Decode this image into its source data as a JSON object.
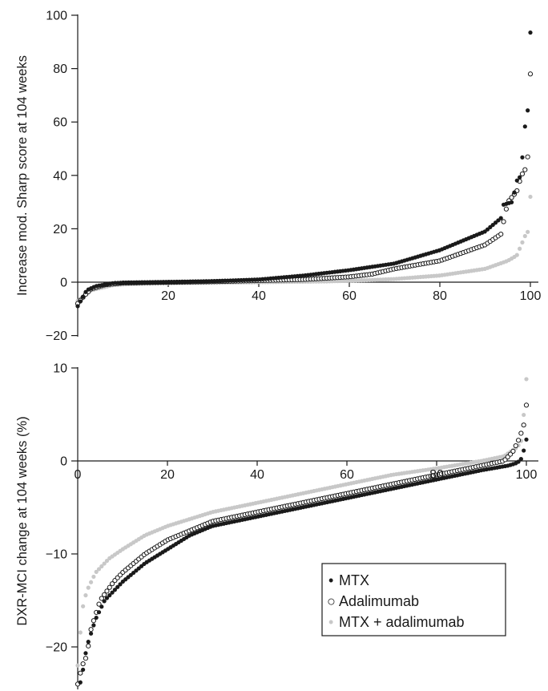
{
  "chart_data": [
    {
      "type": "scatter",
      "title": "",
      "xlabel": "",
      "ylabel": "Increase mod. Sharp score at 104 weeks",
      "xlim": [
        0,
        100
      ],
      "ylim": [
        -20,
        100
      ],
      "x_ticks": [
        "20",
        "40",
        "60",
        "80",
        "100"
      ],
      "y_ticks": [
        "-20",
        "0",
        "20",
        "40",
        "60",
        "80",
        "100"
      ],
      "grid": false,
      "series": [
        {
          "name": "MTX",
          "marker": "filled",
          "color": "#1a1a1a",
          "knots": [
            [
              0,
              -9
            ],
            [
              1,
              -6
            ],
            [
              2,
              -3
            ],
            [
              4,
              -1.5
            ],
            [
              8,
              -0.3
            ],
            [
              20,
              0
            ],
            [
              30,
              0.4
            ],
            [
              40,
              1
            ],
            [
              50,
              2.5
            ],
            [
              60,
              4.5
            ],
            [
              70,
              7
            ],
            [
              80,
              12
            ],
            [
              90,
              19
            ],
            [
              93.5,
              24
            ],
            [
              94,
              29
            ],
            [
              96,
              30
            ],
            [
              97,
              38
            ],
            [
              98,
              40
            ],
            [
              98.6,
              58
            ],
            [
              99.3,
              59
            ],
            [
              100,
              93.5
            ]
          ],
          "n": 170
        },
        {
          "name": "Adalimumab",
          "marker": "open",
          "color": "#1a1a1a",
          "knots": [
            [
              0,
              -8
            ],
            [
              1.5,
              -5
            ],
            [
              3,
              -2.5
            ],
            [
              6,
              -1
            ],
            [
              10,
              -0.3
            ],
            [
              30,
              0.2
            ],
            [
              50,
              1
            ],
            [
              60,
              2
            ],
            [
              65,
              3
            ],
            [
              70,
              5
            ],
            [
              80,
              8
            ],
            [
              90,
              14
            ],
            [
              93.5,
              18
            ],
            [
              95,
              30
            ],
            [
              97,
              34
            ],
            [
              98,
              40
            ],
            [
              98.8,
              42
            ],
            [
              99.4,
              46.5
            ],
            [
              100,
              78
            ]
          ],
          "n": 170
        },
        {
          "name": "MTX + adalimumab",
          "marker": "filled",
          "color": "#c8c8c8",
          "knots": [
            [
              0,
              -7
            ],
            [
              3,
              -3
            ],
            [
              8,
              -1
            ],
            [
              15,
              -0.5
            ],
            [
              40,
              0
            ],
            [
              55,
              0.3
            ],
            [
              65,
              0.8
            ],
            [
              70,
              1.2
            ],
            [
              80,
              2.5
            ],
            [
              90,
              5
            ],
            [
              95,
              8
            ],
            [
              97,
              10
            ],
            [
              98,
              14
            ],
            [
              99,
              18
            ],
            [
              99.5,
              19
            ],
            [
              100,
              32
            ]
          ],
          "n": 170
        }
      ]
    },
    {
      "type": "scatter",
      "title": "",
      "xlabel": "",
      "ylabel": "DXR-MCI change at 104 weeks (%)",
      "xlim": [
        0,
        100
      ],
      "ylim": [
        -25,
        10
      ],
      "x_ticks": [
        "0",
        "20",
        "40",
        "60",
        "80",
        "100"
      ],
      "y_ticks": [
        "-20",
        "-10",
        "0",
        "10"
      ],
      "grid": false,
      "legend": {
        "placement": "bottom-right",
        "entries": [
          {
            "symbol": "•",
            "label": "MTX"
          },
          {
            "symbol": "○",
            "label": "Adalimumab"
          },
          {
            "symbol": "•",
            "label": "MTX + adalimumab"
          }
        ]
      },
      "series": [
        {
          "name": "MTX",
          "marker": "filled",
          "color": "#1a1a1a",
          "knots": [
            [
              0,
              -25
            ],
            [
              1,
              -23
            ],
            [
              2,
              -20
            ],
            [
              4,
              -17
            ],
            [
              6,
              -15
            ],
            [
              8,
              -14
            ],
            [
              10,
              -13
            ],
            [
              15,
              -11
            ],
            [
              20,
              -9.5
            ],
            [
              25,
              -8
            ],
            [
              30,
              -7
            ],
            [
              40,
              -6
            ],
            [
              50,
              -5
            ],
            [
              60,
              -4
            ],
            [
              70,
              -3
            ],
            [
              80,
              -2
            ],
            [
              90,
              -1
            ],
            [
              96,
              -0.5
            ],
            [
              98,
              -0.2
            ],
            [
              99,
              0.3
            ],
            [
              100,
              2.3
            ]
          ],
          "n": 170
        },
        {
          "name": "Adalimumab",
          "marker": "open",
          "color": "#1a1a1a",
          "knots": [
            [
              0,
              -24
            ],
            [
              1,
              -22
            ],
            [
              2,
              -21
            ],
            [
              3,
              -18
            ],
            [
              5,
              -15
            ],
            [
              8,
              -13
            ],
            [
              10,
              -12
            ],
            [
              15,
              -10
            ],
            [
              20,
              -8.5
            ],
            [
              25,
              -7.5
            ],
            [
              30,
              -6.5
            ],
            [
              40,
              -5.5
            ],
            [
              50,
              -4.5
            ],
            [
              60,
              -3.5
            ],
            [
              70,
              -2.5
            ],
            [
              80,
              -1.5
            ],
            [
              90,
              -0.5
            ],
            [
              95,
              0
            ],
            [
              97,
              1
            ],
            [
              98.5,
              2.5
            ],
            [
              99.5,
              4
            ],
            [
              100,
              6
            ]
          ],
          "n": 170
        },
        {
          "name": "MTX + adalimumab",
          "marker": "filled",
          "color": "#c8c8c8",
          "knots": [
            [
              0,
              -22
            ],
            [
              1,
              -16
            ],
            [
              2,
              -14
            ],
            [
              4,
              -12
            ],
            [
              7,
              -10.5
            ],
            [
              10,
              -9.5
            ],
            [
              15,
              -8
            ],
            [
              20,
              -7
            ],
            [
              30,
              -5.5
            ],
            [
              40,
              -4.5
            ],
            [
              50,
              -3.5
            ],
            [
              60,
              -2.5
            ],
            [
              70,
              -1.5
            ],
            [
              80,
              -0.8
            ],
            [
              90,
              0
            ],
            [
              95,
              0.5
            ],
            [
              98,
              1.5
            ],
            [
              99,
              2.3
            ],
            [
              100,
              8.8
            ]
          ],
          "n": 170
        }
      ]
    }
  ]
}
